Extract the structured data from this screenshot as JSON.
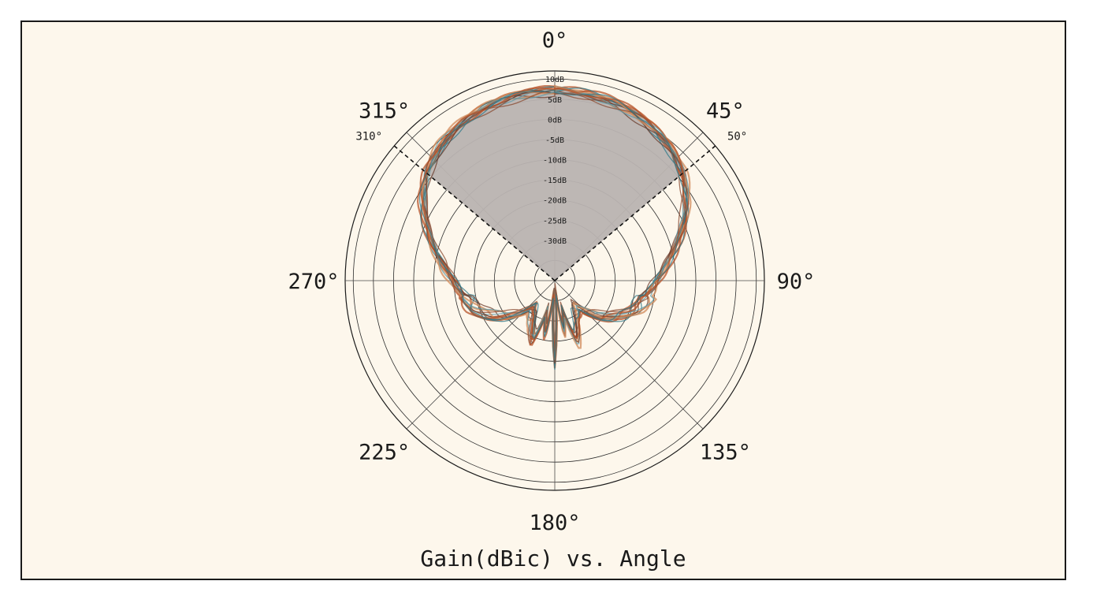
{
  "chart_data": {
    "type": "polar",
    "title": "Gain(dBic) vs. Angle",
    "angle_labels": [
      {
        "deg": 0,
        "text": "0°"
      },
      {
        "deg": 45,
        "text": "45°"
      },
      {
        "deg": 90,
        "text": "90°"
      },
      {
        "deg": 135,
        "text": "135°"
      },
      {
        "deg": 180,
        "text": "180°"
      },
      {
        "deg": 225,
        "text": "225°"
      },
      {
        "deg": 270,
        "text": "270°"
      },
      {
        "deg": 315,
        "text": "315°"
      }
    ],
    "sector": {
      "start_deg": 310,
      "end_deg": 50,
      "start_label": "310°",
      "end_label": "50°"
    },
    "radial_range_db": [
      -40,
      12
    ],
    "radial_ticks": [
      {
        "value": 10,
        "label": "10dB"
      },
      {
        "value": 5,
        "label": "5dB"
      },
      {
        "value": 0,
        "label": "0dB"
      },
      {
        "value": -5,
        "label": "-5dB"
      },
      {
        "value": -10,
        "label": "-10dB"
      },
      {
        "value": -15,
        "label": "-15dB"
      },
      {
        "value": -20,
        "label": "-20dB"
      },
      {
        "value": -25,
        "label": "-25dB"
      },
      {
        "value": -30,
        "label": "-30dB"
      }
    ],
    "series_colors": [
      "#b5532a",
      "#2f7a8a",
      "#6a3a2a",
      "#d08a5a",
      "#5a9aa8",
      "#8a4a30"
    ],
    "envelope": {
      "angles_deg": [
        0,
        10,
        20,
        30,
        40,
        50,
        60,
        70,
        80,
        90,
        100,
        110,
        120,
        130,
        140,
        150,
        160,
        165,
        170,
        175,
        180,
        185,
        190,
        195,
        200,
        210,
        220,
        230,
        240,
        250,
        260,
        270,
        280,
        290,
        300,
        310,
        320,
        330,
        340,
        350,
        360
      ],
      "gain_db": [
        7.5,
        7.3,
        6.8,
        5.8,
        4.2,
        1.8,
        -2,
        -6.5,
        -11,
        -14.5,
        -17,
        -18.5,
        -22,
        -26,
        -31,
        -29,
        -24,
        -32,
        -27,
        -38,
        -20,
        -38,
        -27,
        -32,
        -24,
        -29,
        -31,
        -26,
        -22,
        -18.5,
        -17,
        -14.5,
        -11,
        -6.5,
        -2,
        1.8,
        4.2,
        5.8,
        6.8,
        7.3,
        7.5
      ]
    }
  }
}
